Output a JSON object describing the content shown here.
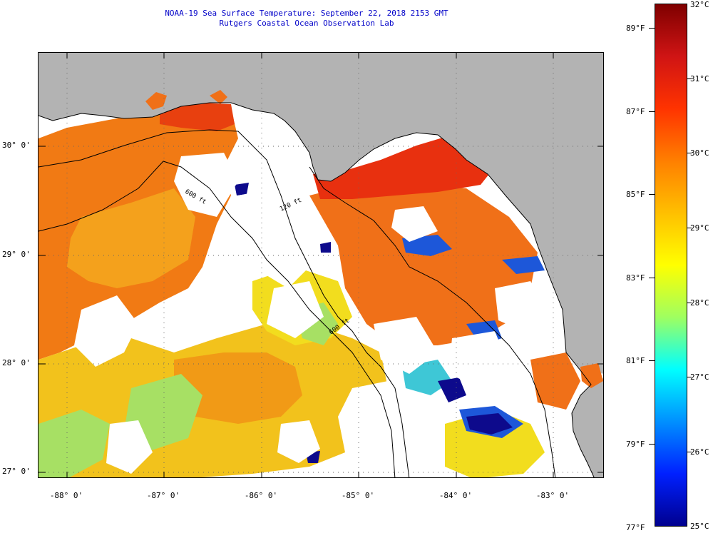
{
  "header": {
    "title_line1": "NOAA-19 Sea Surface Temperature:  September 22, 2018 2153 GMT",
    "title_line2": "Rutgers Coastal Ocean Observation Lab"
  },
  "map": {
    "lat_labels": [
      "30° 0'",
      "29° 0'",
      "28° 0'",
      "27° 0'"
    ],
    "lon_labels": [
      "-88° 0'",
      "-87° 0'",
      "-86° 0'",
      "-85° 0'",
      "-84° 0'",
      "-83° 0'"
    ],
    "contour_labels": [
      "600 ft",
      "120 ft",
      "600 ft"
    ],
    "colors": {
      "land": "#b3b3b3",
      "cloud": "#ffffff",
      "warm_red": "#e8300f",
      "orange": "#f17a14",
      "orange_light": "#f4a11c",
      "yellow": "#f2dd1e",
      "green": "#a7e064",
      "cyan": "#3ec7d6",
      "blue": "#1d57d9",
      "navy": "#0d0a8c"
    }
  },
  "colorbar": {
    "fahrenheit_labels": [
      "89°F",
      "87°F",
      "85°F",
      "83°F",
      "81°F",
      "79°F",
      "77°F"
    ],
    "celsius_labels": [
      "32°C",
      "31°C",
      "30°C",
      "29°C",
      "28°C",
      "27°C",
      "26°C",
      "25°C"
    ],
    "gradient_stops": [
      "#7f0000",
      "#d01414",
      "#ff3300",
      "#ff7f00",
      "#ffbf00",
      "#ffff00",
      "#9fff60",
      "#00ffff",
      "#0090ff",
      "#0020ff",
      "#00008f"
    ]
  }
}
